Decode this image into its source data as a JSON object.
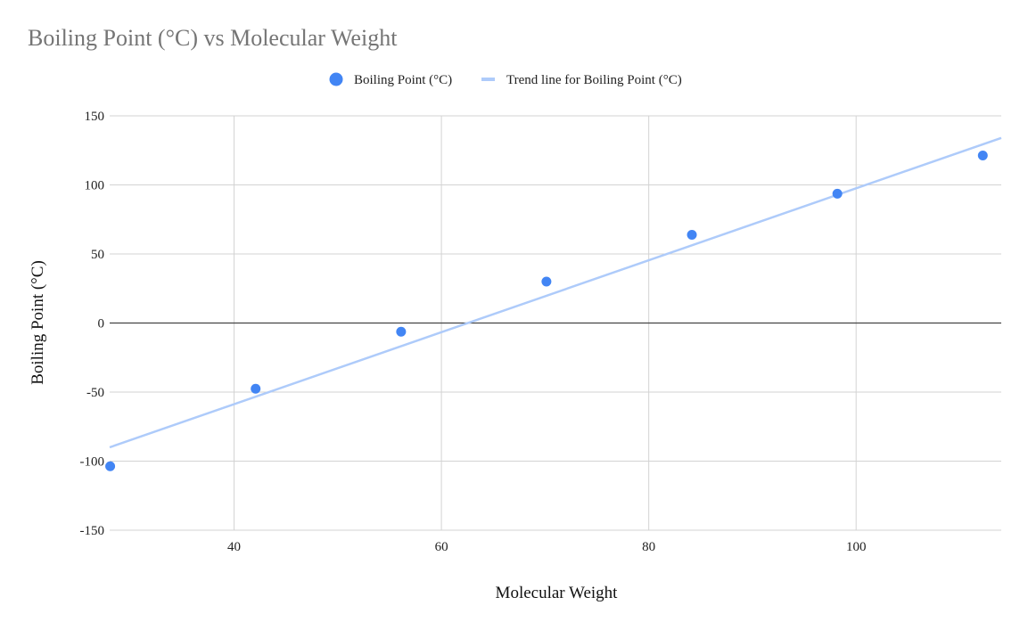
{
  "chart_data": {
    "type": "scatter",
    "title": "Boiling Point (°C) vs Molecular Weight",
    "xlabel": "Molecular Weight",
    "ylabel": "Boiling Point (°C)",
    "xlim": [
      28,
      114
    ],
    "ylim": [
      -150,
      150
    ],
    "x_ticks": [
      40,
      60,
      80,
      100
    ],
    "y_ticks": [
      -150,
      -100,
      -50,
      0,
      50,
      100,
      150
    ],
    "grid": true,
    "legend_position": "top-center",
    "series": [
      {
        "name": "Boiling Point (°C)",
        "color": "#4285f4",
        "x": [
          28.05,
          42.08,
          56.11,
          70.13,
          84.16,
          98.19,
          112.22
        ],
        "y": [
          -103.7,
          -47.6,
          -6.3,
          30.0,
          63.9,
          93.6,
          121.3
        ]
      }
    ],
    "trendline": {
      "name": "Trend line for Boiling Point (°C)",
      "color": "#aecbfa",
      "type": "linear",
      "x_range": [
        28,
        114
      ],
      "y_at_start": -90,
      "y_at_end": 134
    },
    "legend": [
      {
        "label": "Boiling Point (°C)",
        "marker": "circle",
        "color": "#4285f4"
      },
      {
        "label": "Trend line for Boiling Point (°C)",
        "marker": "line",
        "color": "#aecbfa"
      }
    ]
  }
}
